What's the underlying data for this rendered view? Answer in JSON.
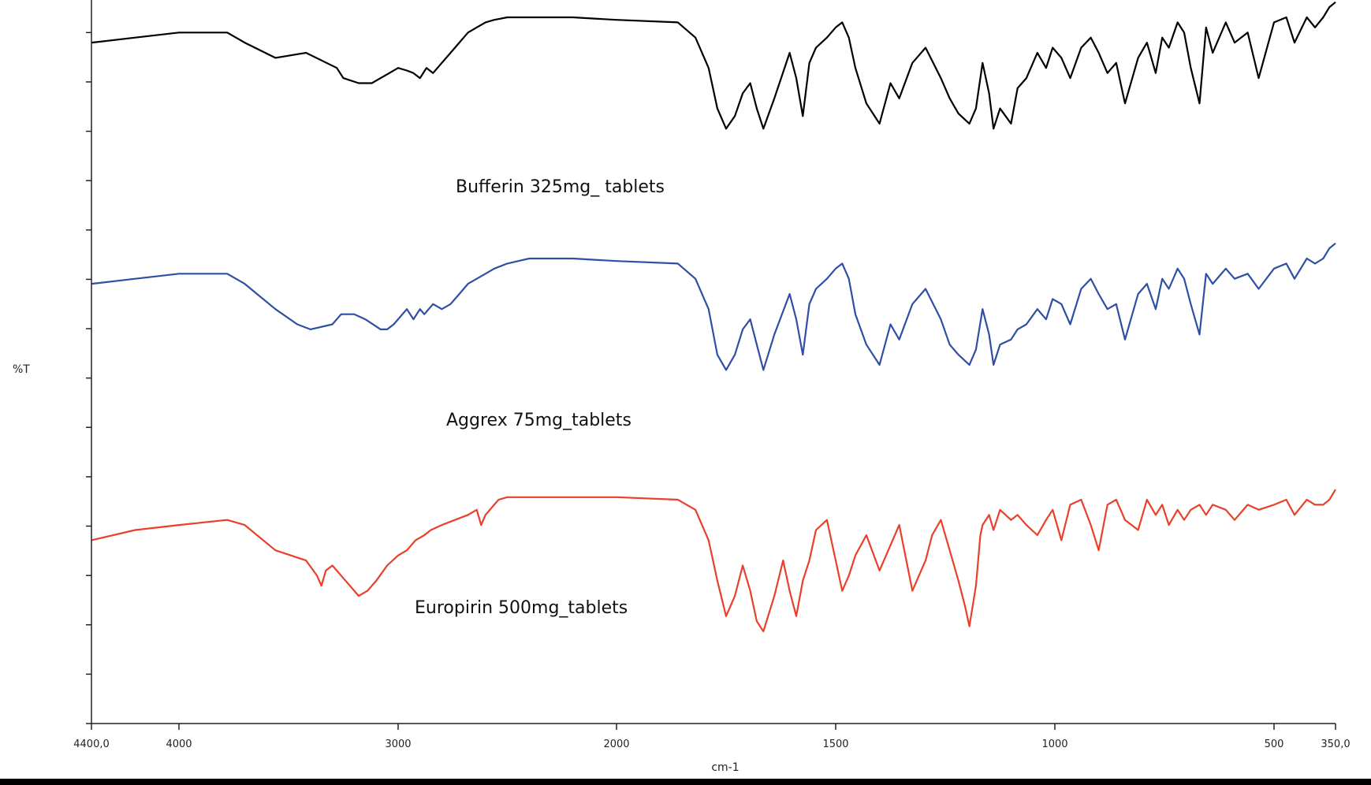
{
  "chart_data": {
    "type": "line",
    "title": "",
    "xlabel": "cm-1",
    "ylabel": "%T",
    "xlim": [
      4400,
      350
    ],
    "x_tick_labels": [
      "4400,0",
      "4000",
      "3000",
      "2000",
      "1500",
      "1000",
      "500",
      "350,0"
    ],
    "grid": false,
    "legend": "none",
    "series": [
      {
        "name": "Bufferin 325mg_ tablets",
        "color": "#000000",
        "offset": 2.0,
        "x": [
          4400,
          4200,
          4000,
          3780,
          3700,
          3560,
          3420,
          3280,
          3250,
          3180,
          3120,
          3080,
          3040,
          3000,
          2960,
          2930,
          2900,
          2870,
          2840,
          2800,
          2760,
          2720,
          2680,
          2640,
          2600,
          2560,
          2500,
          2450,
          2400,
          2200,
          2000,
          1860,
          1820,
          1790,
          1770,
          1750,
          1730,
          1712,
          1695,
          1680,
          1665,
          1640,
          1605,
          1590,
          1575,
          1560,
          1545,
          1520,
          1500,
          1485,
          1470,
          1455,
          1430,
          1400,
          1375,
          1355,
          1325,
          1295,
          1260,
          1240,
          1220,
          1195,
          1180,
          1165,
          1150,
          1140,
          1125,
          1100,
          1085,
          1065,
          1040,
          1020,
          1005,
          985,
          965,
          940,
          918,
          900,
          880,
          860,
          840,
          810,
          790,
          770,
          755,
          740,
          720,
          705,
          690,
          670,
          655,
          640,
          610,
          590,
          560,
          535,
          500,
          470,
          450,
          420,
          400,
          380,
          365,
          350
        ],
        "y": [
          84,
          86,
          88,
          88,
          84,
          78,
          80,
          74,
          70,
          68,
          68,
          70,
          72,
          74,
          73,
          72,
          70,
          74,
          72,
          76,
          80,
          84,
          88,
          90,
          92,
          93,
          94,
          94,
          94,
          94,
          93,
          92,
          86,
          74,
          58,
          50,
          55,
          64,
          68,
          58,
          50,
          62,
          80,
          70,
          55,
          76,
          82,
          86,
          90,
          92,
          86,
          74,
          60,
          52,
          68,
          62,
          76,
          82,
          70,
          62,
          56,
          52,
          58,
          76,
          64,
          50,
          58,
          52,
          66,
          70,
          80,
          74,
          82,
          78,
          70,
          82,
          86,
          80,
          72,
          76,
          60,
          78,
          84,
          72,
          86,
          82,
          92,
          88,
          74,
          60,
          90,
          80,
          92,
          84,
          88,
          70,
          92,
          94,
          84,
          94,
          90,
          94,
          98,
          100
        ]
      },
      {
        "name": "Aggrex 75mg_tablets",
        "color": "#2e4fa3",
        "offset": 1.0,
        "x": [
          4400,
          4200,
          4000,
          3780,
          3700,
          3560,
          3460,
          3400,
          3300,
          3260,
          3200,
          3150,
          3080,
          3050,
          3020,
          2960,
          2930,
          2900,
          2880,
          2840,
          2800,
          2760,
          2720,
          2680,
          2640,
          2600,
          2560,
          2500,
          2450,
          2400,
          2200,
          2000,
          1860,
          1820,
          1790,
          1770,
          1750,
          1730,
          1712,
          1695,
          1680,
          1665,
          1640,
          1605,
          1590,
          1575,
          1560,
          1545,
          1520,
          1500,
          1485,
          1470,
          1455,
          1430,
          1400,
          1375,
          1355,
          1325,
          1295,
          1260,
          1240,
          1220,
          1195,
          1180,
          1165,
          1150,
          1140,
          1125,
          1100,
          1085,
          1065,
          1040,
          1020,
          1005,
          985,
          965,
          940,
          918,
          900,
          880,
          860,
          840,
          810,
          790,
          770,
          755,
          740,
          720,
          705,
          690,
          670,
          655,
          640,
          610,
          590,
          560,
          535,
          500,
          470,
          450,
          420,
          400,
          380,
          365,
          350
        ],
        "y": [
          84,
          86,
          88,
          88,
          84,
          74,
          68,
          66,
          68,
          72,
          72,
          70,
          66,
          66,
          68,
          74,
          70,
          74,
          72,
          76,
          74,
          76,
          80,
          84,
          86,
          88,
          90,
          92,
          93,
          94,
          94,
          93,
          92,
          86,
          74,
          56,
          50,
          56,
          66,
          70,
          60,
          50,
          64,
          80,
          70,
          56,
          76,
          82,
          86,
          90,
          92,
          86,
          72,
          60,
          52,
          68,
          62,
          76,
          82,
          70,
          60,
          56,
          52,
          58,
          74,
          64,
          52,
          60,
          62,
          66,
          68,
          74,
          70,
          78,
          76,
          68,
          82,
          86,
          80,
          74,
          76,
          62,
          80,
          84,
          74,
          86,
          82,
          90,
          86,
          76,
          64,
          88,
          84,
          90,
          86,
          88,
          82,
          90,
          92,
          86,
          94,
          92,
          94,
          98,
          100
        ]
      },
      {
        "name": "Europirin 500mg_tablets",
        "color": "#e8402a",
        "offset": 0.0,
        "x": [
          4400,
          4200,
          4000,
          3780,
          3700,
          3560,
          3420,
          3370,
          3350,
          3330,
          3300,
          3240,
          3180,
          3140,
          3100,
          3050,
          3000,
          2960,
          2920,
          2880,
          2850,
          2800,
          2740,
          2680,
          2640,
          2620,
          2600,
          2560,
          2540,
          2500,
          2450,
          2400,
          2200,
          2000,
          1860,
          1820,
          1790,
          1770,
          1750,
          1730,
          1712,
          1695,
          1680,
          1665,
          1640,
          1620,
          1605,
          1590,
          1575,
          1560,
          1545,
          1520,
          1500,
          1485,
          1470,
          1455,
          1430,
          1400,
          1375,
          1355,
          1325,
          1295,
          1280,
          1260,
          1240,
          1220,
          1205,
          1195,
          1180,
          1170,
          1165,
          1150,
          1140,
          1125,
          1100,
          1085,
          1065,
          1040,
          1020,
          1005,
          985,
          965,
          940,
          918,
          900,
          880,
          860,
          840,
          810,
          790,
          770,
          755,
          740,
          720,
          705,
          690,
          670,
          655,
          640,
          610,
          590,
          560,
          535,
          500,
          470,
          450,
          420,
          400,
          380,
          365,
          350
        ],
        "y": [
          78,
          82,
          84,
          86,
          84,
          74,
          70,
          64,
          60,
          66,
          68,
          62,
          56,
          58,
          62,
          68,
          72,
          74,
          78,
          80,
          82,
          84,
          86,
          88,
          90,
          84,
          88,
          92,
          94,
          95,
          95,
          95,
          95,
          95,
          94,
          90,
          78,
          62,
          48,
          56,
          68,
          58,
          46,
          42,
          56,
          70,
          58,
          48,
          62,
          70,
          82,
          86,
          70,
          58,
          64,
          72,
          80,
          66,
          76,
          84,
          58,
          70,
          80,
          86,
          74,
          62,
          52,
          44,
          60,
          80,
          84,
          88,
          82,
          90,
          86,
          88,
          84,
          80,
          86,
          90,
          78,
          92,
          94,
          84,
          74,
          92,
          94,
          86,
          82,
          94,
          88,
          92,
          84,
          90,
          86,
          90,
          92,
          88,
          92,
          90,
          86,
          92,
          90,
          92,
          94,
          88,
          94,
          92,
          92,
          94,
          98
        ]
      }
    ],
    "annotations": [
      "Bufferin 325mg_ tablets",
      "Aggrex 75mg_tablets",
      "Europirin 500mg_tablets"
    ]
  }
}
